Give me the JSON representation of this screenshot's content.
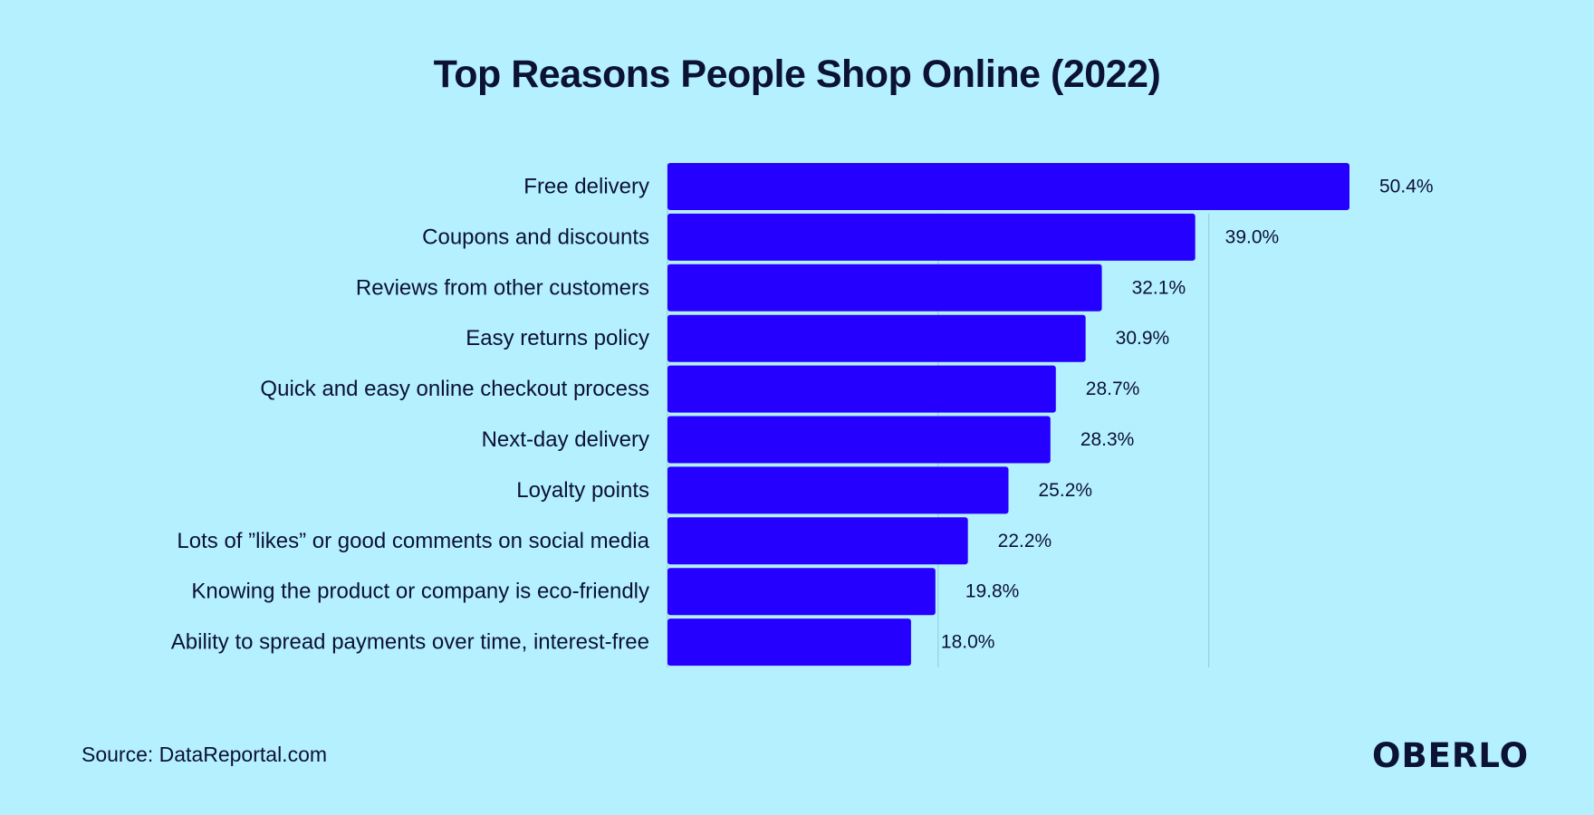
{
  "chart_data": {
    "type": "bar",
    "orientation": "horizontal",
    "title": "Top Reasons People Shop Online (2022)",
    "categories": [
      "Free delivery",
      "Coupons and discounts",
      "Reviews from other customers",
      "Easy returns policy",
      "Quick and easy online checkout process",
      "Next-day delivery",
      "Loyalty points",
      "Lots of ”likes” or good comments on social media",
      "Knowing the product or company is eco-friendly",
      "Ability to spread payments over time, interest-free"
    ],
    "values": [
      50.4,
      39.0,
      32.1,
      30.9,
      28.7,
      28.3,
      25.2,
      22.2,
      19.8,
      18.0
    ],
    "value_labels": [
      "50.4%",
      "39.0%",
      "32.1%",
      "30.9%",
      "28.7%",
      "28.3%",
      "25.2%",
      "22.2%",
      "19.8%",
      "18.0%"
    ],
    "xlim": [
      0,
      50.4
    ],
    "gridlines_at": [
      20,
      40
    ],
    "grid": true,
    "legend": "none",
    "colors": {
      "bar": "#2500ff",
      "background": "#b5f0ff",
      "text": "#0b1233",
      "grid": "#98cfdd"
    }
  },
  "footer": {
    "source": "Source: DataReportal.com",
    "brand": "OBERLO"
  }
}
